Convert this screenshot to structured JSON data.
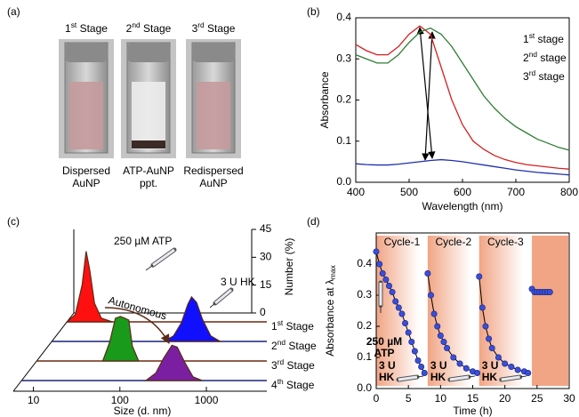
{
  "photo_panel": {
    "label": "(a)",
    "stages": [
      "1st Stage",
      "2nd Stage",
      "3rd Stage"
    ],
    "captions": [
      [
        "Dispersed",
        "AuNP"
      ],
      [
        "ATP-AuNP",
        "ppt."
      ],
      [
        "Redispersed",
        "AuNP"
      ]
    ]
  },
  "chart_data": [
    {
      "label": "(b)",
      "type": "line",
      "xlabel": "Wavelength (nm)",
      "ylabel": "Absorbance",
      "x": [
        400,
        420,
        440,
        460,
        480,
        500,
        520,
        540,
        560,
        580,
        600,
        620,
        640,
        660,
        680,
        700,
        720,
        740,
        760,
        780,
        800
      ],
      "series": [
        {
          "name": "1st stage",
          "color": "#d42020",
          "values": [
            0.335,
            0.32,
            0.31,
            0.31,
            0.33,
            0.36,
            0.38,
            0.36,
            0.28,
            0.2,
            0.14,
            0.1,
            0.08,
            0.065,
            0.055,
            0.048,
            0.043,
            0.04,
            0.037,
            0.034,
            0.032
          ]
        },
        {
          "name": "2nd stage",
          "color": "#1f2fb0",
          "values": [
            0.045,
            0.043,
            0.042,
            0.042,
            0.044,
            0.047,
            0.05,
            0.053,
            0.055,
            0.053,
            0.05,
            0.046,
            0.042,
            0.038,
            0.034,
            0.03,
            0.027,
            0.024,
            0.022,
            0.02,
            0.018
          ]
        },
        {
          "name": "3rd stage",
          "color": "#2e7d32",
          "values": [
            0.31,
            0.3,
            0.29,
            0.29,
            0.31,
            0.34,
            0.365,
            0.375,
            0.36,
            0.33,
            0.29,
            0.25,
            0.21,
            0.18,
            0.155,
            0.135,
            0.12,
            0.105,
            0.095,
            0.085,
            0.078
          ]
        }
      ],
      "xlim": [
        400,
        800
      ],
      "ylim": [
        0,
        0.4
      ],
      "xticks": [
        400,
        500,
        600,
        700,
        800
      ],
      "yticks": [
        {
          "value": 0,
          "label": "0.0"
        },
        0.1,
        0.2,
        0.3,
        0.4
      ],
      "legend": "upper right"
    },
    {
      "label": "(c)",
      "type": "ridgeline",
      "xlabel": "Size (d. nm)",
      "ylabel": "Number (%)",
      "xscale": "log",
      "xlim": [
        6,
        5000
      ],
      "xticks": [
        10,
        100,
        1000
      ],
      "ylim": [
        0,
        45
      ],
      "yticks": [
        0,
        15,
        30,
        45
      ],
      "series": [
        {
          "name": "1st Stage",
          "color": "#ff1010",
          "baseline_color": "#6b2a12",
          "x": [
            12,
            15,
            18,
            20,
            22,
            25,
            30,
            40
          ],
          "values": [
            0,
            4,
            20,
            38,
            28,
            10,
            2,
            0
          ]
        },
        {
          "name": "2nd Stage",
          "color": "#1010ff",
          "baseline_color": "#1a237e",
          "x": [
            200,
            260,
            320,
            380,
            420,
            480,
            560,
            700,
            900
          ],
          "values": [
            0,
            3,
            10,
            20,
            24,
            21,
            12,
            3,
            0
          ]
        },
        {
          "name": "3rd Stage",
          "color": "#1a9a1a",
          "baseline_color": "#6b2a12",
          "x": [
            50,
            60,
            70,
            80,
            90,
            100,
            110,
            130
          ],
          "values": [
            0,
            10,
            23,
            24,
            23,
            22,
            8,
            0
          ]
        },
        {
          "name": "4th Stage",
          "color": "#7b1fa2",
          "baseline_color": "#1a237e",
          "x": [
            200,
            260,
            320,
            400,
            460,
            560,
            700,
            900
          ],
          "values": [
            0,
            4,
            12,
            19,
            18,
            10,
            2,
            0
          ]
        }
      ],
      "annotations": [
        "250 µM ATP",
        "3 U HK",
        "Autonomous"
      ]
    },
    {
      "label": "(d)",
      "type": "line",
      "marker": "circle",
      "xlabel": "Time (h)",
      "ylabel": "Absorbance at λmax",
      "x": [
        0,
        0.5,
        1,
        1.5,
        2,
        2.5,
        3,
        3.5,
        4,
        4.5,
        5,
        5.5,
        6,
        6.5,
        7,
        7.5,
        null,
        8,
        8.5,
        9,
        9.5,
        10,
        10.5,
        11,
        12,
        13,
        14,
        15,
        15.7,
        null,
        16,
        16.5,
        17,
        17.5,
        18,
        19,
        20,
        21,
        22,
        23,
        23.6,
        null,
        24.2,
        24.6,
        25,
        25.4,
        25.8,
        26.2,
        26.6,
        27
      ],
      "values": [
        0.44,
        0.4,
        0.37,
        0.35,
        0.33,
        0.31,
        0.28,
        0.26,
        0.24,
        0.21,
        0.18,
        0.15,
        0.12,
        0.09,
        0.07,
        0.05,
        null,
        0.37,
        0.3,
        0.24,
        0.2,
        0.17,
        0.15,
        0.13,
        0.1,
        0.08,
        0.065,
        0.055,
        0.05,
        null,
        0.36,
        0.26,
        0.2,
        0.16,
        0.13,
        0.1,
        0.08,
        0.07,
        0.06,
        0.055,
        0.05,
        null,
        0.32,
        0.31,
        0.31,
        0.31,
        0.31,
        0.31,
        0.31,
        0.31
      ],
      "marker_color": "#3a4fd8",
      "line_color": "#000000",
      "band_color": "#f0a07e",
      "xlim": [
        0,
        30
      ],
      "ylim": [
        0,
        0.5
      ],
      "xticks": [
        0,
        5,
        10,
        15,
        20,
        25,
        30
      ],
      "yticks": [
        {
          "value": 0,
          "label": "0.0"
        },
        0.1,
        0.2,
        0.3,
        0.4
      ],
      "cycle_labels": [
        "Cycle-1",
        "Cycle-2",
        "Cycle-3"
      ],
      "atp_label": [
        "250 µM",
        "ATP"
      ],
      "hk_labels": [
        [
          "3 U",
          "HK"
        ],
        [
          "3 U",
          "HK"
        ],
        [
          "3 U",
          "HK"
        ]
      ]
    }
  ]
}
